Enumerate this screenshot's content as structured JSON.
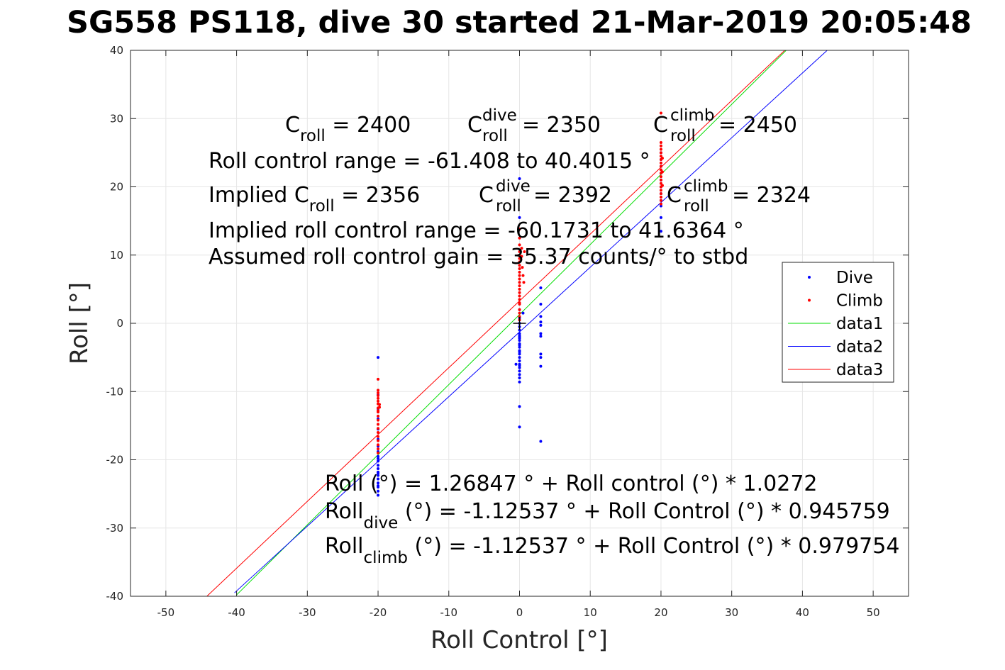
{
  "chart_data": {
    "type": "scatter",
    "title": "SG558 PS118, dive 30 started 21-Mar-2019 20:05:48",
    "xlabel": "Roll Control [°]",
    "ylabel": "Roll [°]",
    "xlim": [
      -55,
      55
    ],
    "ylim": [
      -40,
      40
    ],
    "xticks": [
      -50,
      -40,
      -30,
      -20,
      -10,
      0,
      10,
      20,
      30,
      40,
      50
    ],
    "yticks": [
      -40,
      -30,
      -20,
      -10,
      0,
      10,
      20,
      30,
      40
    ],
    "xtick_labels": [
      "-50",
      "-40",
      "-30",
      "-20",
      "-10",
      "0",
      "10",
      "20",
      "30",
      "40",
      "50"
    ],
    "ytick_labels": [
      "-40",
      "-30",
      "-20",
      "-10",
      "0",
      "10",
      "20",
      "30",
      "40"
    ],
    "grid": true,
    "legend_position": "right",
    "series": [
      {
        "name": "Dive",
        "kind": "points",
        "color": "#0000ff",
        "points": [
          [
            -20,
            -5.0
          ],
          [
            -20,
            -10.5
          ],
          [
            -20,
            -12.5
          ],
          [
            -20,
            -14.0
          ],
          [
            -20,
            -15.5
          ],
          [
            -20,
            -17.0
          ],
          [
            -20,
            -18.0
          ],
          [
            -20,
            -18.8
          ],
          [
            -20,
            -19.5
          ],
          [
            -20,
            -20.2
          ],
          [
            -20,
            -20.8
          ],
          [
            -20,
            -21.3
          ],
          [
            -20,
            -21.8
          ],
          [
            -20,
            -22.3
          ],
          [
            -20,
            -22.8
          ],
          [
            -20,
            -23.4
          ],
          [
            -20,
            -24.0
          ],
          [
            -20,
            -24.6
          ],
          [
            -20,
            -25.2
          ],
          [
            -20,
            -19.8
          ],
          [
            -20,
            -22.0
          ],
          [
            -20,
            -23.8
          ],
          [
            0,
            21.2
          ],
          [
            0,
            15.5
          ],
          [
            0,
            2.0
          ],
          [
            0,
            0.8
          ],
          [
            0,
            0.0
          ],
          [
            0,
            -0.5
          ],
          [
            0,
            -1.0
          ],
          [
            0,
            -1.5
          ],
          [
            0,
            -2.0
          ],
          [
            0,
            -2.5
          ],
          [
            0,
            -3.0
          ],
          [
            0,
            -3.5
          ],
          [
            0,
            -4.0
          ],
          [
            0,
            -4.5
          ],
          [
            0,
            -5.0
          ],
          [
            0,
            -5.5
          ],
          [
            0,
            -6.0
          ],
          [
            0,
            -6.5
          ],
          [
            0,
            -7.0
          ],
          [
            0,
            -7.5
          ],
          [
            0,
            -8.0
          ],
          [
            0,
            -8.6
          ],
          [
            0,
            -12.2
          ],
          [
            0,
            -15.2
          ],
          [
            0,
            -3.2
          ],
          [
            0,
            -2.2
          ],
          [
            0,
            -4.2
          ],
          [
            0,
            -6.2
          ],
          [
            0,
            -1.8
          ],
          [
            -0.5,
            -6.0
          ],
          [
            0.5,
            1.5
          ],
          [
            3,
            5.2
          ],
          [
            3,
            2.8
          ],
          [
            3,
            1.0
          ],
          [
            3,
            0.2
          ],
          [
            3,
            -0.3
          ],
          [
            3,
            -1.5
          ],
          [
            3,
            -1.9
          ],
          [
            3,
            -4.5
          ],
          [
            3,
            -5.0
          ],
          [
            3,
            -6.3
          ],
          [
            3,
            -17.3
          ],
          [
            20,
            25.0
          ],
          [
            20,
            24.0
          ],
          [
            20,
            23.0
          ],
          [
            20,
            22.0
          ],
          [
            20,
            21.0
          ],
          [
            20,
            20.0
          ],
          [
            20,
            19.0
          ],
          [
            20,
            18.0
          ],
          [
            20,
            17.2
          ],
          [
            20,
            15.5
          ],
          [
            20,
            13.5
          ]
        ]
      },
      {
        "name": "Climb",
        "kind": "points",
        "color": "#ff0000",
        "points": [
          [
            -20,
            -8.2
          ],
          [
            -20,
            -9.8
          ],
          [
            -20,
            -10.2
          ],
          [
            -20,
            -11.0
          ],
          [
            -20,
            -11.8
          ],
          [
            -20,
            -12.4
          ],
          [
            -20,
            -13.0
          ],
          [
            -20,
            -13.6
          ],
          [
            -20,
            -14.2
          ],
          [
            -20,
            -14.8
          ],
          [
            -20,
            -15.4
          ],
          [
            -20,
            -16.0
          ],
          [
            -20,
            -16.6
          ],
          [
            -20,
            -17.2
          ],
          [
            -20,
            -17.8
          ],
          [
            -20,
            -18.4
          ],
          [
            -20,
            -19.0
          ],
          [
            -20,
            -11.4
          ],
          [
            -20,
            -12.8
          ],
          [
            -20,
            -10.6
          ],
          [
            -19.8,
            -11.9
          ],
          [
            -19.8,
            -12.3
          ],
          [
            0,
            13.8
          ],
          [
            0,
            12.5
          ],
          [
            0,
            11.5
          ],
          [
            0,
            10.5
          ],
          [
            0,
            9.5
          ],
          [
            0,
            8.5
          ],
          [
            0,
            7.5
          ],
          [
            0,
            6.5
          ],
          [
            0,
            5.5
          ],
          [
            0,
            4.5
          ],
          [
            0,
            3.5
          ],
          [
            0,
            2.8
          ],
          [
            0,
            2.0
          ],
          [
            0,
            1.5
          ],
          [
            0,
            1.0
          ],
          [
            0,
            0.5
          ],
          [
            0,
            3.0
          ],
          [
            0,
            4.0
          ],
          [
            0,
            5.0
          ],
          [
            0,
            6.0
          ],
          [
            0,
            7.0
          ],
          [
            0,
            8.0
          ],
          [
            0,
            9.0
          ],
          [
            0,
            10.0
          ],
          [
            0.3,
            11.0
          ],
          [
            0.3,
            9.8
          ],
          [
            0.4,
            8.2
          ],
          [
            0.5,
            7.0
          ],
          [
            0.6,
            6.0
          ],
          [
            0.7,
            10.5
          ],
          [
            20,
            30.8
          ],
          [
            20,
            26.5
          ],
          [
            20,
            26.0
          ],
          [
            20,
            25.5
          ],
          [
            20,
            25.0
          ],
          [
            20,
            24.5
          ],
          [
            20,
            24.0
          ],
          [
            20,
            23.5
          ],
          [
            20,
            23.0
          ],
          [
            20,
            22.5
          ],
          [
            20,
            22.0
          ],
          [
            20,
            21.5
          ],
          [
            20,
            21.0
          ],
          [
            20,
            20.5
          ],
          [
            20,
            20.0
          ],
          [
            20,
            19.5
          ],
          [
            20,
            19.0
          ],
          [
            20,
            18.5
          ],
          [
            20,
            18.0
          ],
          [
            20,
            17.5
          ],
          [
            20.2,
            24.2
          ],
          [
            20.2,
            22.2
          ],
          [
            20.2,
            20.2
          ]
        ]
      },
      {
        "name": "data1",
        "kind": "line",
        "color": "#00dd00",
        "x": [
          -40,
          37.7
        ],
        "y": [
          -39.8,
          40
        ]
      },
      {
        "name": "data2",
        "kind": "line",
        "color": "#0000ff",
        "x": [
          -40.3,
          43.5
        ],
        "y": [
          -39.5,
          40
        ]
      },
      {
        "name": "data3",
        "kind": "line",
        "color": "#ff0000",
        "x": [
          -44.2,
          37.5
        ],
        "y": [
          -40,
          40
        ]
      }
    ],
    "marker": {
      "x": 0,
      "y": 0,
      "symbol": "+",
      "color": "#000000"
    }
  },
  "annotations": {
    "c_roll": {
      "base": "C",
      "sub": "roll",
      "value": " = 2400"
    },
    "c_roll_dive": {
      "base": "C",
      "sup": "dive",
      "sub": "roll",
      "value": " = 2350"
    },
    "c_roll_climb": {
      "base": "C",
      "sup": "climb",
      "sub": "roll",
      "value": " = 2450"
    },
    "control_range": "Roll control range = -61.408 to 40.4015 °",
    "implied_c_roll": {
      "prefix": "Implied C",
      "sub": "roll",
      "value": " = 2356"
    },
    "implied_c_roll_dive": {
      "base": "C",
      "sup": "dive",
      "sub": "roll",
      "value": " = 2392"
    },
    "implied_c_roll_climb": {
      "base": "C",
      "sup": "climb",
      "sub": "roll",
      "value": " = 2324"
    },
    "implied_range": "Implied roll control range = -60.1731 to 41.6364 °",
    "gain": "Assumed roll control gain = 35.37 counts/° to stbd",
    "fit_all": "Roll (°) = 1.26847 ° + Roll control (°) * 1.0272",
    "fit_dive": {
      "prefix": "Roll",
      "sub": "dive",
      "rest": " (°) = -1.12537 ° + Roll Control (°) * 0.945759"
    },
    "fit_climb": {
      "prefix": "Roll",
      "sub": "climb",
      "rest": " (°) = -1.12537 ° + Roll Control (°) * 0.979754"
    }
  }
}
